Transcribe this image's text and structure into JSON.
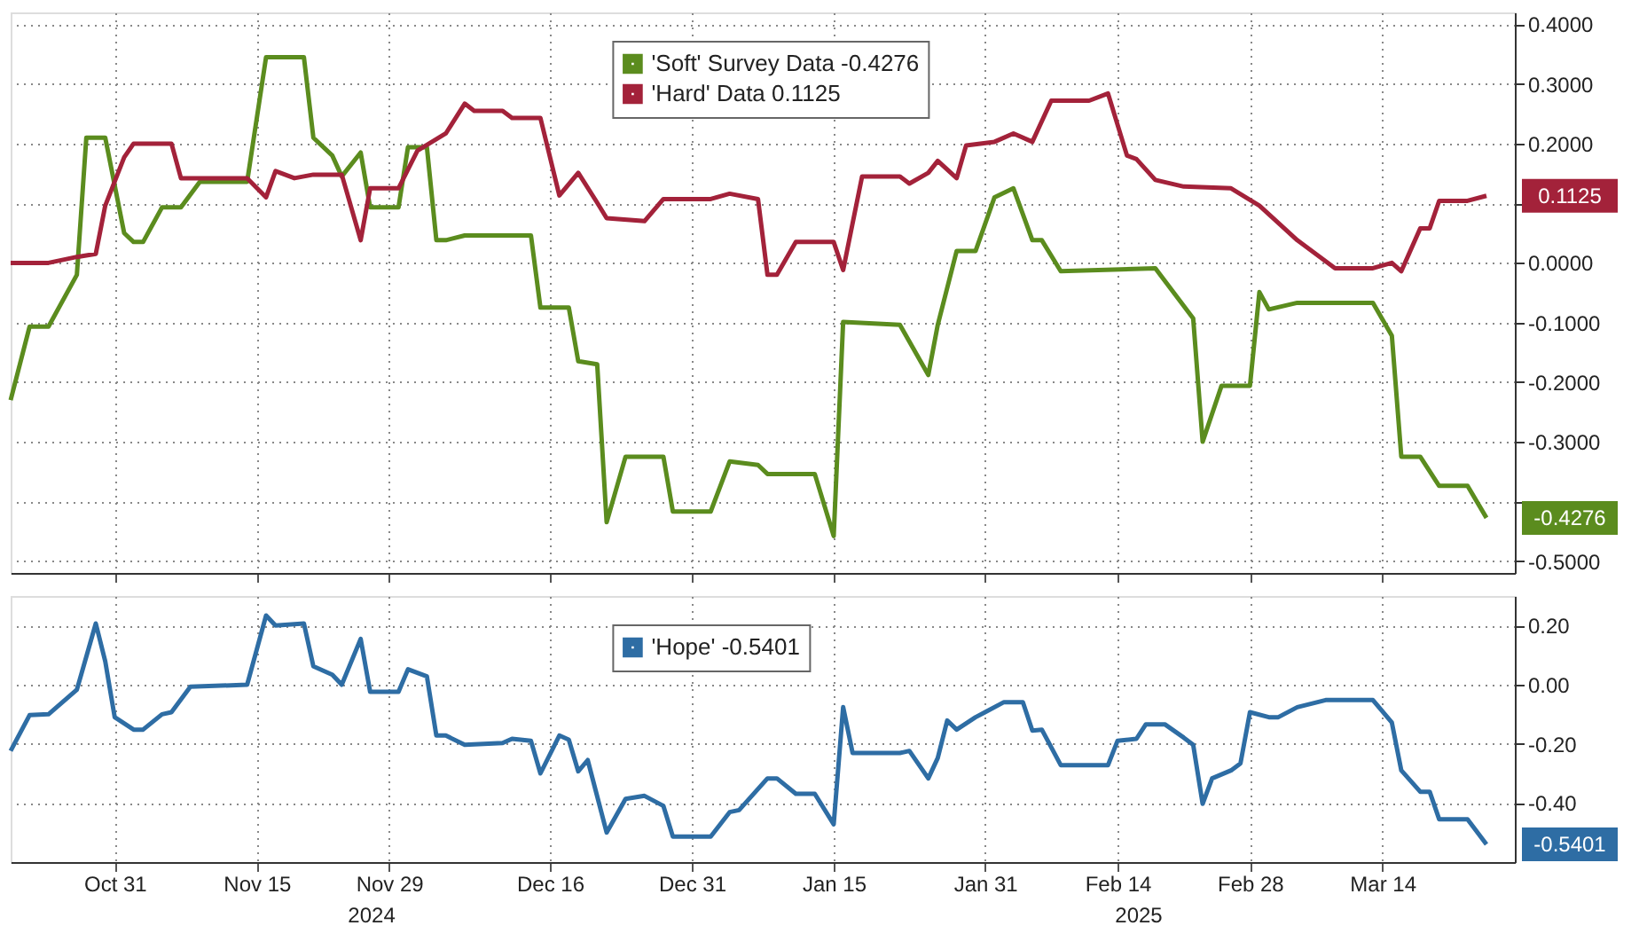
{
  "chart_data": [
    {
      "type": "line",
      "legend": "top",
      "grid": true,
      "tick_labels": "y",
      "line_style": "solid",
      "xlim": [
        "2024-10-20",
        "2025-03-28"
      ],
      "ylim": [
        -0.52,
        0.42
      ],
      "xticks": [
        {
          "value": "2024-10-31",
          "label": null
        },
        {
          "value": "2024-11-15",
          "label": null
        },
        {
          "value": "2024-11-29",
          "label": null
        },
        {
          "value": "2024-12-16",
          "label": null
        },
        {
          "value": "2024-12-31",
          "label": null
        },
        {
          "value": "2025-01-15",
          "label": null
        },
        {
          "value": "2025-01-31",
          "label": null
        },
        {
          "value": "2025-02-14",
          "label": null
        },
        {
          "value": "2025-02-28",
          "label": null
        },
        {
          "value": "2025-03-14",
          "label": null
        }
      ],
      "yticks": [
        {
          "value": -0.5,
          "label": "-0.5000"
        },
        {
          "value": -0.4,
          "label": null
        },
        {
          "value": -0.3,
          "label": "-0.3000"
        },
        {
          "value": -0.2,
          "label": "-0.2000"
        },
        {
          "value": -0.1,
          "label": "-0.1000"
        },
        {
          "value": 0,
          "label": "0.0000"
        },
        {
          "value": 0.1,
          "label": null
        },
        {
          "value": 0.2,
          "label": "0.2000"
        },
        {
          "value": 0.3,
          "label": "0.3000"
        },
        {
          "value": 0.4,
          "label": "0.4000"
        }
      ],
      "series": [
        {
          "name": "'Soft' Survey Data -0.4276",
          "color": "#5b8c1e",
          "x": [
            "2024-10-20",
            "2024-10-22",
            "2024-10-24",
            "2024-10-27",
            "2024-10-28",
            "2024-10-30",
            "2024-11-01",
            "2024-11-02",
            "2024-11-03",
            "2024-11-05",
            "2024-11-07",
            "2024-11-09",
            "2024-11-14",
            "2024-11-16",
            "2024-11-20",
            "2024-11-21",
            "2024-11-23",
            "2024-11-24",
            "2024-11-26",
            "2024-11-27",
            "2024-11-30",
            "2024-12-01",
            "2024-12-03",
            "2024-12-04",
            "2024-12-05",
            "2024-12-07",
            "2024-12-14",
            "2024-12-15",
            "2024-12-18",
            "2024-12-19",
            "2024-12-21",
            "2024-12-22",
            "2024-12-24",
            "2024-12-28",
            "2024-12-29",
            "2025-01-02",
            "2025-01-04",
            "2025-01-07",
            "2025-01-08",
            "2025-01-13",
            "2025-01-15",
            "2025-01-16",
            "2025-01-22",
            "2025-01-25",
            "2025-01-26",
            "2025-01-28",
            "2025-01-30",
            "2025-02-01",
            "2025-02-03",
            "2025-02-05",
            "2025-02-06",
            "2025-02-08",
            "2025-02-18",
            "2025-02-22",
            "2025-02-23",
            "2025-02-25",
            "2025-02-28",
            "2025-03-01",
            "2025-03-02",
            "2025-03-05",
            "2025-03-13",
            "2025-03-15",
            "2025-03-16",
            "2025-03-18",
            "2025-03-20",
            "2025-03-23",
            "2025-03-25"
          ],
          "values": [
            -0.23,
            -0.107,
            -0.107,
            -0.02,
            0.21,
            0.21,
            0.05,
            0.035,
            0.035,
            0.093,
            0.093,
            0.136,
            0.136,
            0.345,
            0.345,
            0.21,
            0.18,
            0.145,
            0.185,
            0.093,
            0.093,
            0.194,
            0.194,
            0.038,
            0.038,
            0.046,
            0.046,
            -0.075,
            -0.075,
            -0.165,
            -0.17,
            -0.435,
            -0.325,
            -0.325,
            -0.417,
            -0.417,
            -0.333,
            -0.339,
            -0.354,
            -0.354,
            -0.458,
            -0.099,
            -0.104,
            -0.188,
            -0.104,
            0.02,
            0.02,
            0.11,
            0.125,
            0.038,
            0.038,
            -0.014,
            -0.009,
            -0.093,
            -0.3,
            -0.206,
            -0.206,
            -0.049,
            -0.078,
            -0.067,
            -0.067,
            -0.122,
            -0.325,
            -0.325,
            -0.374,
            -0.374,
            -0.4276
          ]
        },
        {
          "name": "'Hard' Data 0.1125",
          "color": "#a3223a",
          "x": [
            "2024-10-20",
            "2024-10-24",
            "2024-10-27",
            "2024-10-29",
            "2024-10-30",
            "2024-11-01",
            "2024-11-02",
            "2024-11-06",
            "2024-11-07",
            "2024-11-14",
            "2024-11-16",
            "2024-11-17",
            "2024-11-19",
            "2024-11-21",
            "2024-11-24",
            "2024-11-26",
            "2024-11-27",
            "2024-11-30",
            "2024-12-02",
            "2024-12-05",
            "2024-12-07",
            "2024-12-08",
            "2024-12-11",
            "2024-12-12",
            "2024-12-15",
            "2024-12-17",
            "2024-12-19",
            "2024-12-21",
            "2024-12-22",
            "2024-12-26",
            "2024-12-28",
            "2025-01-02",
            "2025-01-04",
            "2025-01-07",
            "2025-01-08",
            "2025-01-09",
            "2025-01-11",
            "2025-01-15",
            "2025-01-16",
            "2025-01-18",
            "2025-01-22",
            "2025-01-23",
            "2025-01-25",
            "2025-01-26",
            "2025-01-28",
            "2025-01-29",
            "2025-02-01",
            "2025-02-03",
            "2025-02-05",
            "2025-02-07",
            "2025-02-11",
            "2025-02-13",
            "2025-02-15",
            "2025-02-16",
            "2025-02-18",
            "2025-02-21",
            "2025-02-26",
            "2025-03-01",
            "2025-03-05",
            "2025-03-09",
            "2025-03-13",
            "2025-03-15",
            "2025-03-16",
            "2025-03-18",
            "2025-03-19",
            "2025-03-20",
            "2025-03-23",
            "2025-03-25"
          ],
          "values": [
            0.0,
            0.0,
            0.01,
            0.015,
            0.096,
            0.177,
            0.2,
            0.2,
            0.142,
            0.142,
            0.11,
            0.154,
            0.142,
            0.148,
            0.148,
            0.038,
            0.125,
            0.125,
            0.188,
            0.217,
            0.267,
            0.255,
            0.255,
            0.243,
            0.243,
            0.113,
            0.151,
            0.101,
            0.075,
            0.07,
            0.107,
            0.107,
            0.116,
            0.107,
            -0.02,
            -0.02,
            0.035,
            0.035,
            -0.012,
            0.145,
            0.145,
            0.133,
            0.151,
            0.171,
            0.142,
            0.197,
            0.203,
            0.217,
            0.203,
            0.272,
            0.272,
            0.284,
            0.18,
            0.174,
            0.139,
            0.128,
            0.125,
            0.096,
            0.038,
            -0.009,
            -0.009,
            0.0,
            -0.014,
            0.058,
            0.058,
            0.104,
            0.104,
            0.1125
          ]
        }
      ],
      "annotations": [
        {
          "text": "-0.4276",
          "x": "2025-03-25",
          "y": -0.4276
        },
        {
          "text": "0.1125",
          "x": "2025-03-25",
          "y": 0.1125
        }
      ]
    },
    {
      "type": "line",
      "legend": "top",
      "grid": true,
      "line_style": "solid",
      "xlim": [
        "2024-10-20",
        "2025-03-28"
      ],
      "ylim": [
        -0.6,
        0.3
      ],
      "xticks": [
        {
          "value": "2024-10-31",
          "label": "Oct 31"
        },
        {
          "value": "2024-11-15",
          "label": "Nov 15"
        },
        {
          "value": "2024-11-29",
          "label": "Nov 29"
        },
        {
          "value": "2024-12-16",
          "label": "Dec 16"
        },
        {
          "value": "2024-12-31",
          "label": "Dec 31"
        },
        {
          "value": "2025-01-15",
          "label": "Jan 15"
        },
        {
          "value": "2025-01-31",
          "label": "Jan 31"
        },
        {
          "value": "2025-02-14",
          "label": "Feb 14"
        },
        {
          "value": "2025-02-28",
          "label": "Feb 28"
        },
        {
          "value": "2025-03-14",
          "label": "Mar 14"
        }
      ],
      "yticks": [
        {
          "value": -0.4,
          "label": "-0.40"
        },
        {
          "value": -0.2,
          "label": "-0.20"
        },
        {
          "value": 0,
          "label": "0.00"
        },
        {
          "value": 0.2,
          "label": "0.20"
        }
      ],
      "series": [
        {
          "name": "'Hope' -0.5401",
          "color": "#2e6da4",
          "x": [
            "2024-10-20",
            "2024-10-22",
            "2024-10-24",
            "2024-10-27",
            "2024-10-29",
            "2024-10-30",
            "2024-10-31",
            "2024-11-02",
            "2024-11-03",
            "2024-11-05",
            "2024-11-06",
            "2024-11-08",
            "2024-11-14",
            "2024-11-16",
            "2024-11-17",
            "2024-11-20",
            "2024-11-21",
            "2024-11-23",
            "2024-11-24",
            "2024-11-26",
            "2024-11-27",
            "2024-11-30",
            "2024-12-01",
            "2024-12-03",
            "2024-12-04",
            "2024-12-05",
            "2024-12-07",
            "2024-12-11",
            "2024-12-12",
            "2024-12-14",
            "2024-12-15",
            "2024-12-17",
            "2024-12-18",
            "2024-12-19",
            "2024-12-20",
            "2024-12-22",
            "2024-12-24",
            "2024-12-26",
            "2024-12-28",
            "2024-12-29",
            "2025-01-02",
            "2025-01-04",
            "2025-01-05",
            "2025-01-08",
            "2025-01-09",
            "2025-01-11",
            "2025-01-13",
            "2025-01-15",
            "2025-01-16",
            "2025-01-17",
            "2025-01-22",
            "2025-01-23",
            "2025-01-25",
            "2025-01-26",
            "2025-01-27",
            "2025-01-28",
            "2025-01-30",
            "2025-01-31",
            "2025-02-02",
            "2025-02-04",
            "2025-02-05",
            "2025-02-06",
            "2025-02-08",
            "2025-02-13",
            "2025-02-14",
            "2025-02-16",
            "2025-02-17",
            "2025-02-19",
            "2025-02-21",
            "2025-02-22",
            "2025-02-23",
            "2025-02-24",
            "2025-02-26",
            "2025-02-27",
            "2025-02-28",
            "2025-03-02",
            "2025-03-03",
            "2025-03-05",
            "2025-03-08",
            "2025-03-13",
            "2025-03-15",
            "2025-03-16",
            "2025-03-18",
            "2025-03-19",
            "2025-03-20",
            "2025-03-23",
            "2025-03-25"
          ],
          "values": [
            -0.224,
            -0.103,
            -0.1,
            -0.017,
            0.207,
            0.079,
            -0.11,
            -0.152,
            -0.152,
            -0.1,
            -0.093,
            -0.007,
            0.0,
            0.234,
            0.2,
            0.207,
            0.062,
            0.034,
            0.0,
            0.155,
            -0.024,
            -0.024,
            0.052,
            0.028,
            -0.172,
            -0.172,
            -0.203,
            -0.197,
            -0.183,
            -0.19,
            -0.3,
            -0.172,
            -0.186,
            -0.293,
            -0.255,
            -0.5,
            -0.386,
            -0.376,
            -0.41,
            -0.514,
            -0.514,
            -0.431,
            -0.424,
            -0.317,
            -0.317,
            -0.369,
            -0.369,
            -0.472,
            -0.076,
            -0.231,
            -0.231,
            -0.224,
            -0.317,
            -0.248,
            -0.121,
            -0.152,
            -0.11,
            -0.093,
            -0.059,
            -0.059,
            -0.155,
            -0.152,
            -0.272,
            -0.272,
            -0.19,
            -0.183,
            -0.134,
            -0.134,
            -0.179,
            -0.203,
            -0.403,
            -0.317,
            -0.29,
            -0.266,
            -0.093,
            -0.11,
            -0.11,
            -0.076,
            -0.052,
            -0.052,
            -0.128,
            -0.29,
            -0.362,
            -0.362,
            -0.455,
            -0.455,
            -0.5401
          ]
        }
      ],
      "annotations": [
        {
          "text": "-0.5401",
          "x": "2025-03-25",
          "y": -0.5401
        },
        "2024",
        "2025"
      ]
    }
  ]
}
